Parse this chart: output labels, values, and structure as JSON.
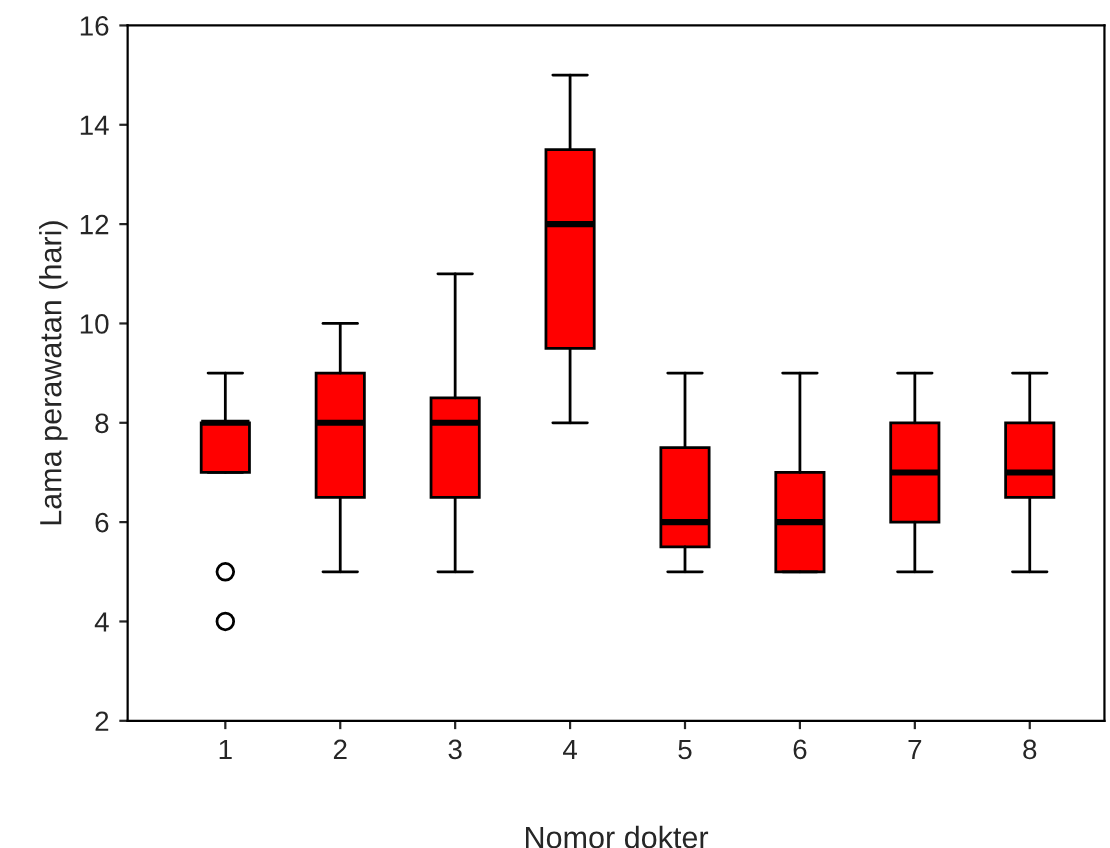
{
  "chart_data": {
    "type": "box",
    "xlabel": "Nomor dokter",
    "ylabel": "Lama perawatan (hari)",
    "categories": [
      "1",
      "2",
      "3",
      "4",
      "5",
      "6",
      "7",
      "8"
    ],
    "series": [
      {
        "color": "#ff0000",
        "boxes": [
          {
            "low": 7,
            "q1": 7,
            "median": 8,
            "q3": 8,
            "high": 9,
            "outliers": [
              5,
              4
            ]
          },
          {
            "low": 5,
            "q1": 6.5,
            "median": 8,
            "q3": 9,
            "high": 10
          },
          {
            "low": 5,
            "q1": 6.5,
            "median": 8,
            "q3": 8.5,
            "high": 11
          },
          {
            "low": 8,
            "q1": 9.5,
            "median": 12,
            "q3": 13.5,
            "high": 15
          },
          {
            "low": 5,
            "q1": 5.5,
            "median": 6,
            "q3": 7.5,
            "high": 9
          },
          {
            "low": 5,
            "q1": 5,
            "median": 6,
            "q3": 7,
            "high": 9
          },
          {
            "low": 5,
            "q1": 6,
            "median": 7,
            "q3": 8,
            "high": 9
          },
          {
            "low": 5,
            "q1": 6.5,
            "median": 7,
            "q3": 8,
            "high": 9
          }
        ]
      }
    ],
    "ylim": [
      2,
      16
    ],
    "yticks": [
      2,
      4,
      6,
      8,
      10,
      12,
      14,
      16
    ],
    "grid": false,
    "legend": false
  }
}
